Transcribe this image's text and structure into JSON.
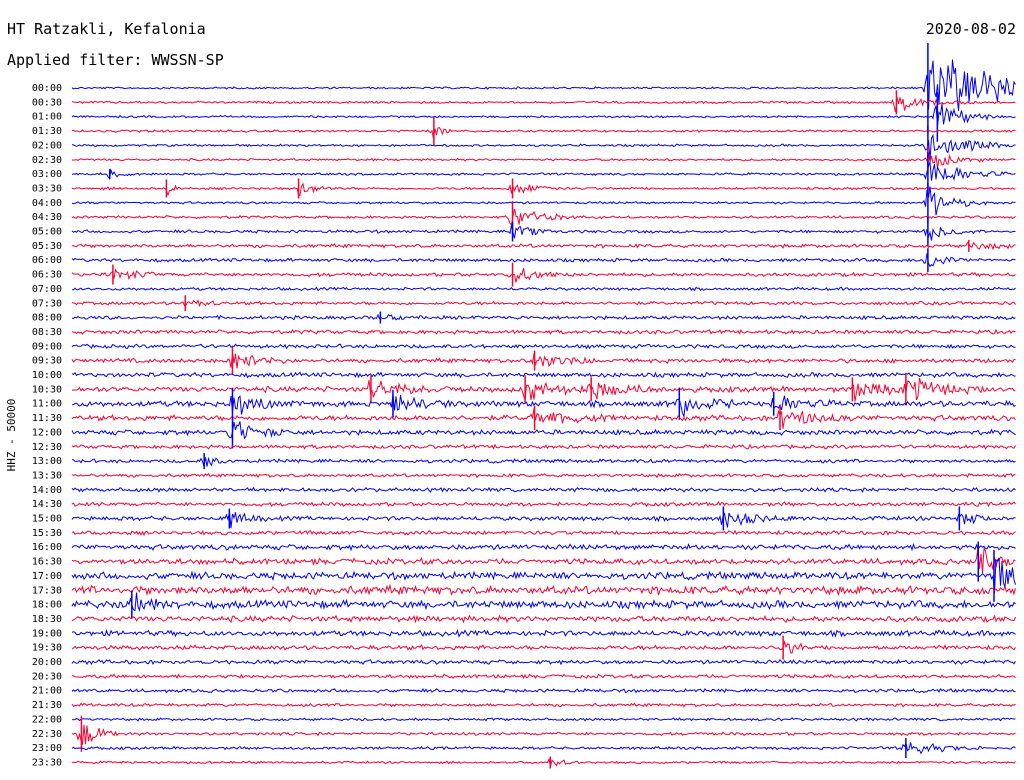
{
  "header": {
    "station": "HT Ratzakli, Kefalonia",
    "filter": "Applied filter: WWSSN-SP",
    "date": "2020-08-02"
  },
  "chart_data": {
    "type": "line",
    "title": "HT Ratzakli, Kefalonia",
    "subtitle": "Applied filter: WWSSN-SP",
    "ylabel": "HHZ - 50000",
    "row_labels": [
      "00:00",
      "00:30",
      "01:00",
      "01:30",
      "02:00",
      "02:30",
      "03:00",
      "03:30",
      "04:00",
      "04:30",
      "05:00",
      "05:30",
      "06:00",
      "06:30",
      "07:00",
      "07:30",
      "08:00",
      "08:30",
      "09:00",
      "09:30",
      "10:00",
      "10:30",
      "11:00",
      "11:30",
      "12:00",
      "12:30",
      "13:00",
      "13:30",
      "14:00",
      "14:30",
      "15:00",
      "15:30",
      "16:00",
      "16:30",
      "17:00",
      "17:30",
      "18:00",
      "18:30",
      "19:00",
      "19:30",
      "20:00",
      "20:30",
      "21:00",
      "21:30",
      "22:00",
      "22:30",
      "23:00",
      "23:30"
    ],
    "row_minutes": 30,
    "trace_colors": [
      "#0000ff",
      "#ff0033"
    ],
    "noise_level": [
      0.9,
      1.0,
      0.9,
      1.0,
      1.0,
      1.0,
      1.0,
      1.1,
      1.0,
      1.2,
      1.3,
      1.6,
      1.5,
      1.6,
      1.3,
      1.5,
      1.6,
      1.7,
      1.7,
      1.9,
      2.0,
      2.4,
      2.6,
      2.4,
      2.2,
      1.7,
      1.6,
      1.5,
      1.7,
      1.7,
      1.9,
      1.8,
      2.3,
      2.6,
      3.1,
      3.8,
      3.4,
      2.6,
      2.4,
      2.0,
      1.8,
      1.6,
      1.5,
      1.4,
      1.2,
      1.3,
      1.2,
      1.0
    ],
    "events": [
      {
        "row": 0,
        "minute": 27.2,
        "amplitude": 45,
        "duration_min": 6,
        "color": "#0000ff"
      },
      {
        "row": 1,
        "minute": 26.2,
        "amplitude": 12,
        "duration_min": 2.5,
        "color": "#ff0033"
      },
      {
        "row": 2,
        "minute": 27.5,
        "amplitude": 25,
        "duration_min": 2,
        "color": "#0000ff"
      },
      {
        "row": 3,
        "minute": 11.5,
        "amplitude": 14,
        "duration_min": 0.6,
        "color": "#ff0033"
      },
      {
        "row": 4,
        "minute": 27.2,
        "amplitude": 20,
        "duration_min": 3,
        "color": "#0000ff"
      },
      {
        "row": 5,
        "minute": 27.2,
        "amplitude": 14,
        "duration_min": 2,
        "color": "#ff0033"
      },
      {
        "row": 6,
        "minute": 27.2,
        "amplitude": 22,
        "duration_min": 2.5,
        "color": "#0000ff"
      },
      {
        "row": 6,
        "minute": 1.2,
        "amplitude": 5,
        "duration_min": 1,
        "color": "#0000ff"
      },
      {
        "row": 7,
        "minute": 7.2,
        "amplitude": 10,
        "duration_min": 1.2,
        "color": "#ff0033"
      },
      {
        "row": 7,
        "minute": 14.0,
        "amplitude": 10,
        "duration_min": 1.5,
        "color": "#ff0033"
      },
      {
        "row": 7,
        "minute": 3.0,
        "amplitude": 9,
        "duration_min": 0.8,
        "color": "#ff0033"
      },
      {
        "row": 8,
        "minute": 27.2,
        "amplitude": 20,
        "duration_min": 2,
        "color": "#0000ff"
      },
      {
        "row": 9,
        "minute": 14.0,
        "amplitude": 16,
        "duration_min": 2,
        "color": "#ff0033"
      },
      {
        "row": 10,
        "minute": 27.2,
        "amplitude": 15,
        "duration_min": 1.5,
        "color": "#0000ff"
      },
      {
        "row": 10,
        "minute": 14.0,
        "amplitude": 10,
        "duration_min": 1.5,
        "color": "#0000ff"
      },
      {
        "row": 11,
        "minute": 28.5,
        "amplitude": 6,
        "duration_min": 2,
        "color": "#ff0033"
      },
      {
        "row": 12,
        "minute": 27.2,
        "amplitude": 12,
        "duration_min": 1.5,
        "color": "#0000ff"
      },
      {
        "row": 13,
        "minute": 1.3,
        "amplitude": 10,
        "duration_min": 1.5,
        "color": "#ff0033"
      },
      {
        "row": 13,
        "minute": 14.0,
        "amplitude": 12,
        "duration_min": 2,
        "color": "#ff0033"
      },
      {
        "row": 15,
        "minute": 3.6,
        "amplitude": 8,
        "duration_min": 1.2,
        "color": "#ff0033"
      },
      {
        "row": 16,
        "minute": 9.8,
        "amplitude": 6,
        "duration_min": 1,
        "color": "#0000ff"
      },
      {
        "row": 19,
        "minute": 5.1,
        "amplitude": 14,
        "duration_min": 2,
        "color": "#ff0033"
      },
      {
        "row": 19,
        "minute": 14.7,
        "amplitude": 10,
        "duration_min": 2.5,
        "color": "#ff0033"
      },
      {
        "row": 21,
        "minute": 9.5,
        "amplitude": 14,
        "duration_min": 2.5,
        "color": "#ff0033"
      },
      {
        "row": 21,
        "minute": 14.4,
        "amplitude": 14,
        "duration_min": 2.5,
        "color": "#ff0033"
      },
      {
        "row": 21,
        "minute": 16.5,
        "amplitude": 12,
        "duration_min": 2.5,
        "color": "#ff0033"
      },
      {
        "row": 21,
        "minute": 24.8,
        "amplitude": 12,
        "duration_min": 2.5,
        "color": "#ff0033"
      },
      {
        "row": 21,
        "minute": 26.5,
        "amplitude": 16,
        "duration_min": 2.5,
        "color": "#ff0033"
      },
      {
        "row": 22,
        "minute": 5.1,
        "amplitude": 16,
        "duration_min": 2,
        "color": "#0000ff"
      },
      {
        "row": 22,
        "minute": 10.2,
        "amplitude": 14,
        "duration_min": 2,
        "color": "#0000ff"
      },
      {
        "row": 22,
        "minute": 19.3,
        "amplitude": 16,
        "duration_min": 2,
        "color": "#0000ff"
      },
      {
        "row": 22,
        "minute": 22.3,
        "amplitude": 12,
        "duration_min": 2,
        "color": "#0000ff"
      },
      {
        "row": 23,
        "minute": 14.7,
        "amplitude": 12,
        "duration_min": 2.5,
        "color": "#ff0033"
      },
      {
        "row": 23,
        "minute": 22.5,
        "amplitude": 12,
        "duration_min": 2.5,
        "color": "#ff0033"
      },
      {
        "row": 24,
        "minute": 5.1,
        "amplitude": 16,
        "duration_min": 2,
        "color": "#0000ff"
      },
      {
        "row": 26,
        "minute": 4.2,
        "amplitude": 8,
        "duration_min": 1,
        "color": "#0000ff"
      },
      {
        "row": 30,
        "minute": 5.0,
        "amplitude": 10,
        "duration_min": 1.2,
        "color": "#0000ff"
      },
      {
        "row": 30,
        "minute": 20.7,
        "amplitude": 12,
        "duration_min": 2,
        "color": "#0000ff"
      },
      {
        "row": 30,
        "minute": 28.2,
        "amplitude": 12,
        "duration_min": 1,
        "color": "#0000ff"
      },
      {
        "row": 33,
        "minute": 28.8,
        "amplitude": 20,
        "duration_min": 1.5,
        "color": "#0000ff"
      },
      {
        "row": 34,
        "minute": 29.3,
        "amplitude": 26,
        "duration_min": 1.5,
        "color": "#0000ff"
      },
      {
        "row": 36,
        "minute": 1.9,
        "amplitude": 14,
        "duration_min": 1.5,
        "color": "#0000ff"
      },
      {
        "row": 39,
        "minute": 22.6,
        "amplitude": 12,
        "duration_min": 1,
        "color": "#ff0033"
      },
      {
        "row": 45,
        "minute": 0.3,
        "amplitude": 18,
        "duration_min": 1.5,
        "color": "#ff0033"
      },
      {
        "row": 46,
        "minute": 26.5,
        "amplitude": 10,
        "duration_min": 2.5,
        "color": "#0000ff"
      },
      {
        "row": 47,
        "minute": 15.2,
        "amplitude": 6,
        "duration_min": 1,
        "color": "#ff0033"
      }
    ]
  }
}
